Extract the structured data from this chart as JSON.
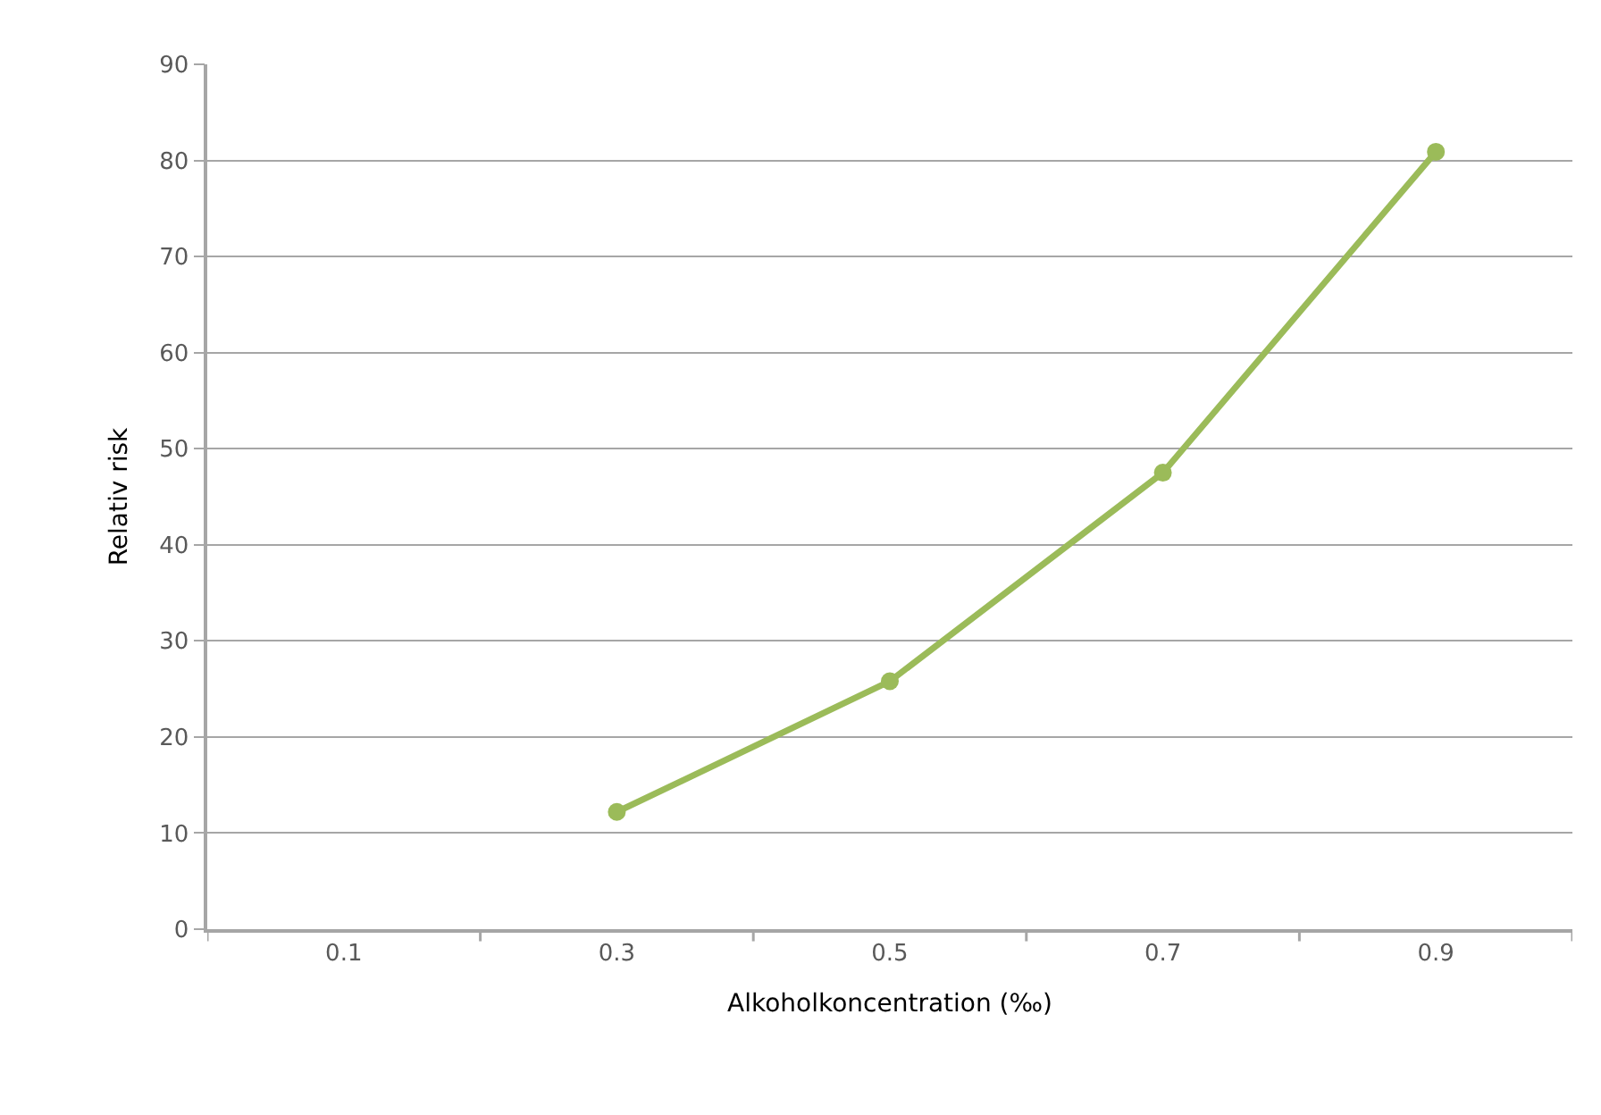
{
  "chart_data": {
    "type": "line",
    "xlabel": "Alkoholkoncentration (‰)",
    "ylabel": "Relativ risk",
    "categories": [
      "0.1",
      "0.3",
      "0.5",
      "0.7",
      "0.9"
    ],
    "series": [
      {
        "color": "#9bbb59",
        "values": [
          null,
          12.2,
          25.8,
          47.5,
          80.9
        ]
      }
    ],
    "ylim": [
      0,
      90
    ],
    "yticks": [
      0,
      10,
      20,
      30,
      40,
      50,
      60,
      70,
      80,
      90
    ],
    "grid": "y",
    "marker": "circle",
    "line_style": "solid"
  }
}
